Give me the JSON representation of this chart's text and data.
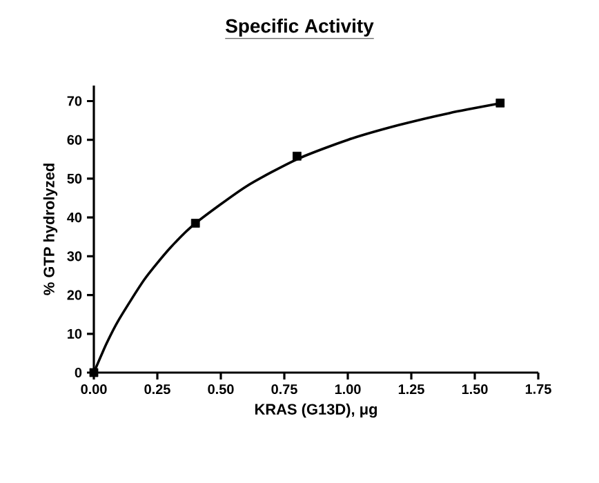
{
  "chart_data": {
    "type": "scatter",
    "title": "Specific Activity",
    "xlabel": "KRAS (G13D), μg",
    "ylabel": "% GTP hydrolyzed",
    "xlim": [
      0,
      1.75
    ],
    "xticks": [
      {
        "value": 0,
        "label": "0.00"
      },
      0.25,
      {
        "value": 0.5,
        "label": "0.50"
      },
      0.75,
      {
        "value": 1,
        "label": "1.00"
      },
      1.25,
      {
        "value": 1.5,
        "label": "1.50"
      },
      1.75
    ],
    "ylim": [
      0,
      74
    ],
    "yticks": [
      0,
      10,
      20,
      30,
      40,
      50,
      60,
      70
    ],
    "grid": false,
    "series": [
      {
        "type": "line",
        "color": "#000000",
        "marker": "none",
        "line_style": "solid",
        "x": [
          0,
          0.05,
          0.1,
          0.2,
          0.3,
          0.4,
          0.6,
          0.8,
          1.0,
          1.2,
          1.4,
          1.6
        ],
        "values": [
          0,
          7.5,
          13.8,
          24.1,
          32.1,
          38.5,
          48,
          55,
          60,
          63.8,
          66.9,
          69.4
        ]
      },
      {
        "color": "#000000",
        "marker": "square",
        "x": [
          0,
          0.4,
          0.8,
          1.6
        ],
        "values": [
          0,
          38.5,
          55.8,
          69.5
        ]
      }
    ]
  }
}
